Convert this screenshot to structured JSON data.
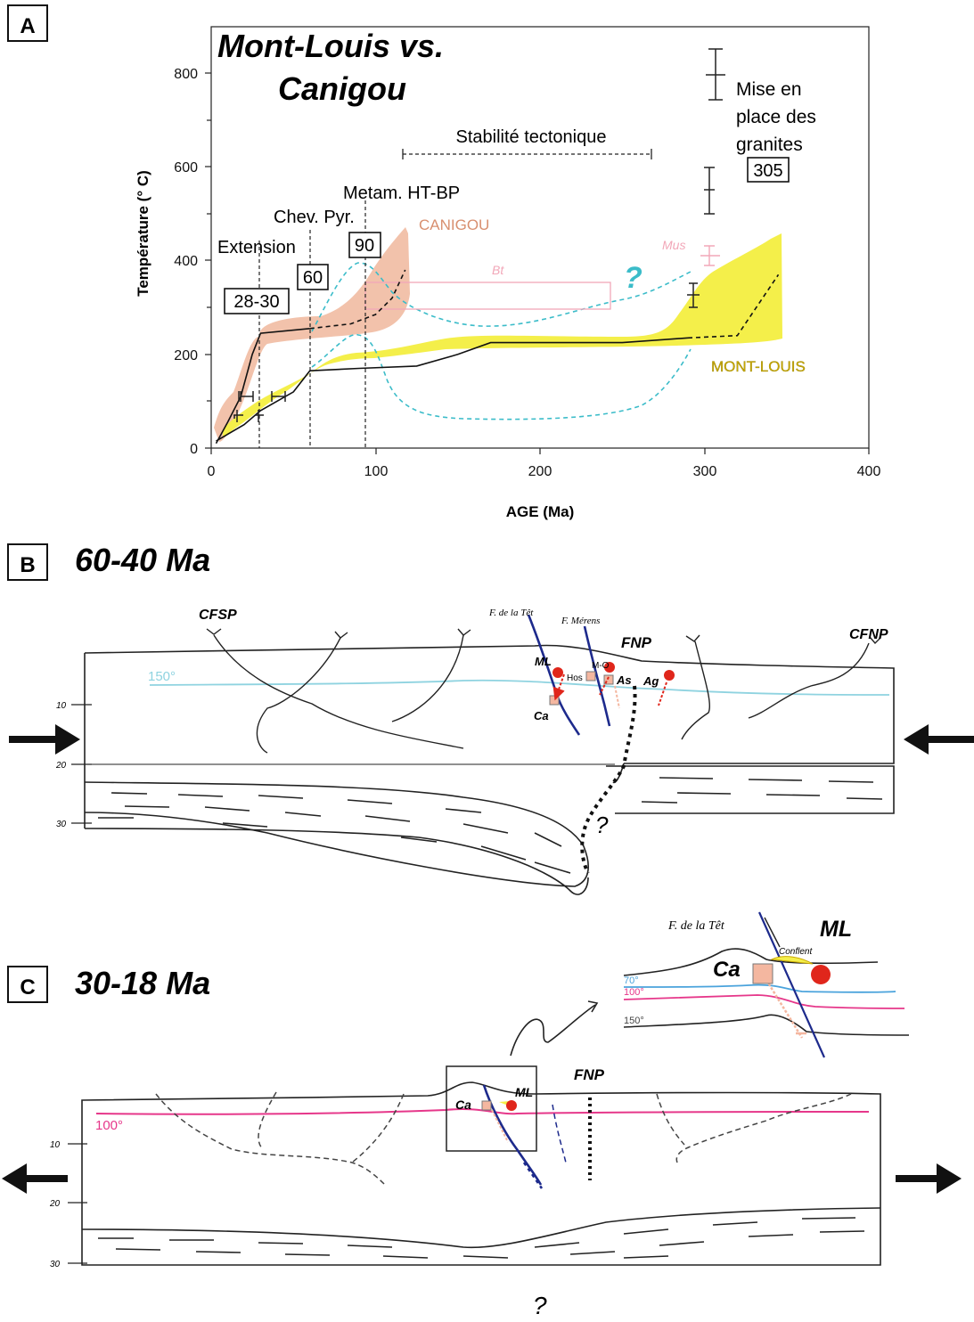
{
  "panel_a": {
    "label": "A",
    "title_line1": "Mont-Louis  vs.",
    "title_line2": "Canigou",
    "xlabel": "AGE (Ma)",
    "ylabel": "Température (° C)",
    "x_ticks": [
      "0",
      "100",
      "200",
      "300",
      "400"
    ],
    "y_ticks": [
      "0",
      "200",
      "400",
      "600",
      "800"
    ],
    "annotations": {
      "stability": "Stabilité tectonique",
      "metam": "Metam. HT-BP",
      "chev": "Chev. Pyr.",
      "extension": "Extension",
      "box_90": "90",
      "box_60": "60",
      "box_28": "28-30",
      "canigou": "CANIGOU",
      "mont_louis": "MONT-LOUIS",
      "bt": "Bt",
      "mus": "Mus",
      "question": "?",
      "granites_line1": "Mise en",
      "granites_line2": "place des",
      "granites_line3": "granites",
      "box_305": "305"
    },
    "colors": {
      "canigou_band": "#f2c2ab",
      "mont_louis_band": "#f4ef4a",
      "cyan_dashed": "#3bbcc9",
      "pink": "#f2a7b8",
      "canigou_text": "#d88f6f",
      "mont_louis_text": "#c9a800",
      "question": "#3bbcc9"
    }
  },
  "chart_data": {
    "type": "line",
    "title": "Mont-Louis  vs. Canigou",
    "xlabel": "AGE (Ma)",
    "ylabel": "Température (° C)",
    "xlim": [
      0,
      400
    ],
    "ylim": [
      0,
      850
    ],
    "series": [
      {
        "name": "CANIGOU",
        "x": [
          3,
          10,
          18,
          25,
          30,
          60,
          85,
          100,
          110,
          118
        ],
        "y": [
          10,
          55,
          110,
          200,
          245,
          255,
          265,
          285,
          320,
          380
        ]
      },
      {
        "name": "MONT-LOUIS",
        "x": [
          3,
          20,
          30,
          50,
          60,
          90,
          125,
          150,
          170,
          250,
          290,
          320,
          345
        ],
        "y": [
          15,
          50,
          80,
          120,
          165,
          170,
          175,
          200,
          225,
          225,
          235,
          240,
          370
        ]
      }
    ]
  },
  "panel_b": {
    "label": "B",
    "title": "60-40  Ma",
    "cfsp": "CFSP",
    "cfnp": "CFNP",
    "fnp": "FNP",
    "f_tet": "F. de la Têt",
    "f_merens": "F. Mérens",
    "ml": "ML",
    "mo": "M-O",
    "hos": "Hos",
    "as": "As",
    "ag": "Ag",
    "ca": "Ca",
    "iso": "150°",
    "q": "?",
    "d10": "10",
    "d20": "20",
    "d30": "30"
  },
  "panel_c": {
    "label": "C",
    "title": "30-18  Ma",
    "fnp": "FNP",
    "ml": "ML",
    "ca": "Ca",
    "iso": "100°",
    "q": "?",
    "d10": "10",
    "d20": "20",
    "d30": "30",
    "inset": {
      "f_tet": "F. de la Têt",
      "ml": "ML",
      "ca": "Ca",
      "conflent": "Conflent",
      "iso70": "70°",
      "iso100": "100°",
      "iso150": "150°"
    }
  }
}
